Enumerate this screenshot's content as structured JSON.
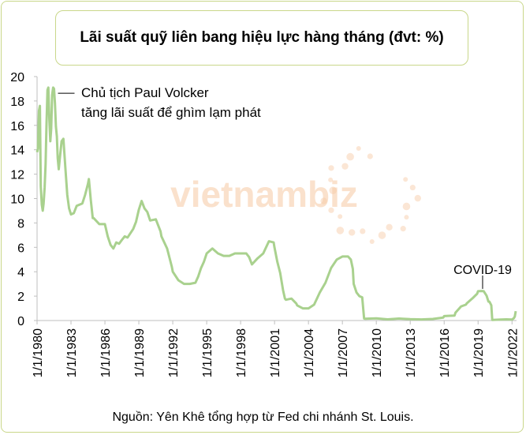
{
  "title": "Lãi suất quỹ liên bang hiệu lực hàng tháng (đvt: %)",
  "source": "Nguồn: Yên Khê tổng hợp từ Fed chi nhánh St. Louis.",
  "watermark": "vietnambiz",
  "colors": {
    "line": "#a9d18e",
    "border": "#c9d78a",
    "axis": "#bfbfbf",
    "watermark": "#f7c9a3"
  },
  "chart_data": {
    "type": "line",
    "ylim": [
      0,
      20
    ],
    "yticks": [
      "0",
      "2",
      "4",
      "6",
      "8",
      "10",
      "12",
      "14",
      "16",
      "18",
      "20"
    ],
    "xrange": [
      1980,
      2022.4
    ],
    "xticks": [
      {
        "year": 1980,
        "label": "1/1/1980"
      },
      {
        "year": 1983,
        "label": "1/1/1983"
      },
      {
        "year": 1986,
        "label": "1/1/1986"
      },
      {
        "year": 1989,
        "label": "1/1/1989"
      },
      {
        "year": 1992,
        "label": "1/1/1992"
      },
      {
        "year": 1995,
        "label": "1/1/1995"
      },
      {
        "year": 1998,
        "label": "1/1/1998"
      },
      {
        "year": 2001,
        "label": "1/1/2001"
      },
      {
        "year": 2004,
        "label": "1/1/2004"
      },
      {
        "year": 2007,
        "label": "1/1/2007"
      },
      {
        "year": 2010,
        "label": "1/1/2010"
      },
      {
        "year": 2013,
        "label": "1/1/2013"
      },
      {
        "year": 2016,
        "label": "1/1/2016"
      },
      {
        "year": 2019,
        "label": "1/1/2019"
      },
      {
        "year": 2022,
        "label": "1/1/2022"
      }
    ],
    "grid": false,
    "series": [
      {
        "x": [
          1980.0,
          1980.08,
          1980.17,
          1980.25,
          1980.33,
          1980.42,
          1980.5,
          1980.58,
          1980.67,
          1980.75,
          1980.83,
          1980.92,
          1981.0,
          1981.08,
          1981.17,
          1981.25,
          1981.33,
          1981.42,
          1981.5,
          1981.58,
          1981.67,
          1981.75,
          1981.83,
          1981.92,
          1982.0,
          1982.17,
          1982.33,
          1982.5,
          1982.67,
          1982.83,
          1983.0,
          1983.25,
          1983.5,
          1983.75,
          1984.0,
          1984.25,
          1984.5,
          1984.58,
          1984.75,
          1984.92,
          1985.0,
          1985.5,
          1986.0,
          1986.25,
          1986.5,
          1986.75,
          1987.0,
          1987.25,
          1987.5,
          1987.75,
          1988.0,
          1988.5,
          1988.75,
          1989.0,
          1989.25,
          1989.5,
          1989.75,
          1990.0,
          1990.5,
          1990.92,
          1991.0,
          1991.5,
          1991.92,
          1992.0,
          1992.5,
          1993.0,
          1993.5,
          1994.0,
          1994.25,
          1994.5,
          1994.75,
          1995.0,
          1995.5,
          1995.75,
          1996.0,
          1996.5,
          1997.0,
          1997.5,
          1998.0,
          1998.5,
          1998.75,
          1999.0,
          1999.5,
          1999.75,
          2000.0,
          2000.5,
          2000.92,
          2001.0,
          2001.25,
          2001.5,
          2001.75,
          2001.92,
          2002.0,
          2002.5,
          2002.92,
          2003.0,
          2003.5,
          2003.92,
          2004.0,
          2004.5,
          2004.75,
          2005.0,
          2005.5,
          2006.0,
          2006.5,
          2007.0,
          2007.5,
          2007.75,
          2007.92,
          2008.0,
          2008.25,
          2008.5,
          2008.75,
          2008.92,
          2009.0,
          2010.0,
          2011.0,
          2012.0,
          2013.0,
          2014.0,
          2015.0,
          2015.92,
          2016.0,
          2016.5,
          2016.92,
          2017.0,
          2017.5,
          2017.92,
          2018.0,
          2018.5,
          2018.92,
          2019.0,
          2019.33,
          2019.5,
          2019.75,
          2019.92,
          2020.0,
          2020.17,
          2020.25,
          2021.0,
          2021.5,
          2022.0,
          2022.17,
          2022.25,
          2022.33
        ],
        "y": [
          13.8,
          14.1,
          17.2,
          17.6,
          11.0,
          9.5,
          9.0,
          9.6,
          10.9,
          12.8,
          15.9,
          18.9,
          19.1,
          16.6,
          14.7,
          15.7,
          18.5,
          19.1,
          19.0,
          17.8,
          15.9,
          15.1,
          13.3,
          12.4,
          13.2,
          14.7,
          14.9,
          12.6,
          10.3,
          9.2,
          8.7,
          8.8,
          9.4,
          9.5,
          9.6,
          10.3,
          11.2,
          11.6,
          9.9,
          8.4,
          8.4,
          7.9,
          7.9,
          6.9,
          6.2,
          5.9,
          6.4,
          6.3,
          6.6,
          6.9,
          6.8,
          7.5,
          8.1,
          9.1,
          9.8,
          9.2,
          8.9,
          8.2,
          8.3,
          7.3,
          6.9,
          5.9,
          4.4,
          4.0,
          3.3,
          3.0,
          3.0,
          3.1,
          3.6,
          4.3,
          4.8,
          5.5,
          5.9,
          5.7,
          5.5,
          5.3,
          5.3,
          5.5,
          5.5,
          5.5,
          5.2,
          4.6,
          5.1,
          5.3,
          5.5,
          6.5,
          6.4,
          5.98,
          4.8,
          3.9,
          2.5,
          1.8,
          1.7,
          1.8,
          1.4,
          1.24,
          1.0,
          1.0,
          1.0,
          1.3,
          1.8,
          2.3,
          3.1,
          4.3,
          5.0,
          5.25,
          5.25,
          5.0,
          4.24,
          3.0,
          2.3,
          2.0,
          1.9,
          0.16,
          0.15,
          0.18,
          0.1,
          0.16,
          0.11,
          0.09,
          0.13,
          0.24,
          0.36,
          0.39,
          0.41,
          0.65,
          1.16,
          1.3,
          1.41,
          1.82,
          2.2,
          2.4,
          2.42,
          2.4,
          2.04,
          1.55,
          1.55,
          1.25,
          0.05,
          0.08,
          0.1,
          0.08,
          0.2,
          0.33,
          0.77
        ]
      }
    ],
    "annotations": [
      {
        "lines": [
          "Chủ tịch Paul Volcker",
          "tăng lãi suất để ghìm lạm phát"
        ],
        "x": 1981.5,
        "y": 18.5
      },
      {
        "text": "COVID-19",
        "x": 2019.4,
        "y": 2.4
      }
    ]
  }
}
